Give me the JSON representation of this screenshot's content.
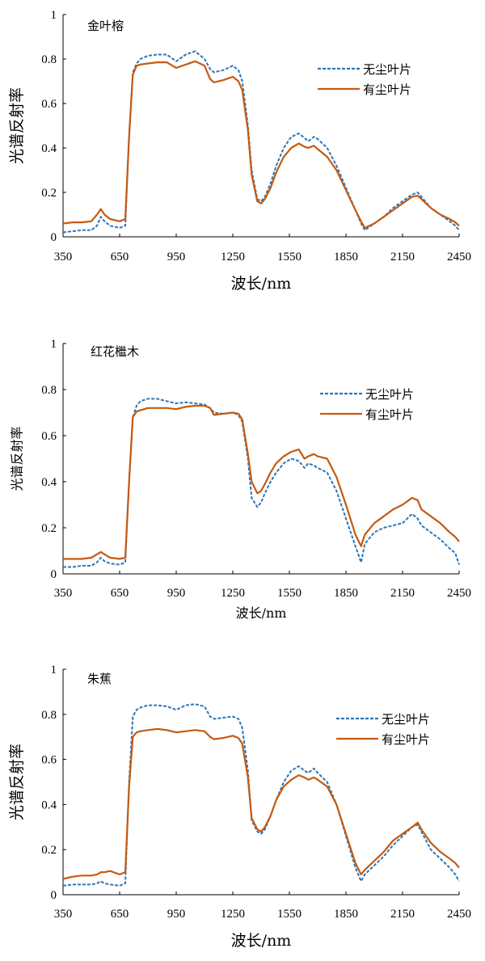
{
  "colors": {
    "dust_free": "#2E75B6",
    "dusty": "#C55A11",
    "axis": "#000000"
  },
  "chart_data": [
    {
      "type": "line",
      "title": "金叶榕",
      "xlabel": "波长/nm",
      "ylabel": "光谱反射率",
      "xlim": [
        350,
        2450
      ],
      "ylim": [
        0,
        1
      ],
      "xticks": [
        "350",
        "650",
        "950",
        "1250",
        "1550",
        "1850",
        "2150",
        "2450"
      ],
      "yticks": [
        "0",
        "0.2",
        "0.4",
        "0.6",
        "0.8",
        "1"
      ],
      "legend": "right",
      "series": [
        {
          "name": "无尘叶片",
          "style": "dashed",
          "x": [
            350,
            400,
            450,
            500,
            530,
            550,
            570,
            600,
            650,
            680,
            700,
            720,
            740,
            760,
            800,
            850,
            900,
            950,
            1000,
            1050,
            1100,
            1130,
            1150,
            1200,
            1250,
            1280,
            1300,
            1330,
            1350,
            1380,
            1400,
            1420,
            1450,
            1480,
            1520,
            1560,
            1600,
            1630,
            1650,
            1680,
            1700,
            1750,
            1800,
            1850,
            1900,
            1930,
            1950,
            2000,
            2050,
            2100,
            2150,
            2200,
            2230,
            2250,
            2300,
            2350,
            2400,
            2430,
            2450
          ],
          "y": [
            0.02,
            0.025,
            0.03,
            0.03,
            0.05,
            0.09,
            0.07,
            0.05,
            0.04,
            0.05,
            0.45,
            0.74,
            0.78,
            0.8,
            0.815,
            0.82,
            0.82,
            0.79,
            0.82,
            0.835,
            0.8,
            0.755,
            0.74,
            0.75,
            0.77,
            0.75,
            0.7,
            0.5,
            0.3,
            0.17,
            0.16,
            0.18,
            0.24,
            0.32,
            0.4,
            0.45,
            0.465,
            0.445,
            0.43,
            0.45,
            0.44,
            0.4,
            0.32,
            0.22,
            0.12,
            0.06,
            0.03,
            0.06,
            0.09,
            0.13,
            0.16,
            0.19,
            0.2,
            0.18,
            0.13,
            0.1,
            0.07,
            0.05,
            0.03
          ]
        },
        {
          "name": "有尘叶片",
          "style": "solid",
          "x": [
            350,
            400,
            450,
            500,
            530,
            550,
            570,
            600,
            650,
            680,
            700,
            720,
            740,
            760,
            800,
            850,
            900,
            950,
            1000,
            1050,
            1100,
            1130,
            1150,
            1200,
            1250,
            1280,
            1300,
            1330,
            1350,
            1380,
            1400,
            1420,
            1450,
            1480,
            1520,
            1560,
            1600,
            1630,
            1650,
            1680,
            1700,
            1750,
            1800,
            1850,
            1900,
            1930,
            1950,
            2000,
            2050,
            2100,
            2150,
            2200,
            2230,
            2250,
            2300,
            2350,
            2400,
            2430,
            2450
          ],
          "y": [
            0.06,
            0.065,
            0.065,
            0.07,
            0.1,
            0.125,
            0.1,
            0.08,
            0.07,
            0.08,
            0.45,
            0.73,
            0.77,
            0.775,
            0.78,
            0.785,
            0.785,
            0.76,
            0.775,
            0.79,
            0.77,
            0.71,
            0.695,
            0.705,
            0.72,
            0.7,
            0.66,
            0.48,
            0.28,
            0.16,
            0.15,
            0.17,
            0.22,
            0.29,
            0.36,
            0.4,
            0.42,
            0.405,
            0.4,
            0.41,
            0.395,
            0.36,
            0.3,
            0.21,
            0.12,
            0.07,
            0.04,
            0.06,
            0.09,
            0.12,
            0.15,
            0.18,
            0.185,
            0.17,
            0.13,
            0.1,
            0.08,
            0.065,
            0.05
          ]
        }
      ]
    },
    {
      "type": "line",
      "title": "红花檵木",
      "xlabel": "波长/nm",
      "ylabel": "光谱反射率",
      "xlim": [
        350,
        2450
      ],
      "ylim": [
        0,
        1
      ],
      "xticks": [
        "350",
        "650",
        "950",
        "1250",
        "1550",
        "1850",
        "2150",
        "2450"
      ],
      "yticks": [
        "0",
        "0.2",
        "0.4",
        "0.6",
        "0.8",
        "1"
      ],
      "legend": "right",
      "series": [
        {
          "name": "无尘叶片",
          "style": "dashed",
          "x": [
            350,
            400,
            450,
            500,
            530,
            550,
            570,
            600,
            650,
            680,
            700,
            720,
            740,
            760,
            800,
            850,
            900,
            950,
            1000,
            1050,
            1100,
            1130,
            1150,
            1200,
            1250,
            1280,
            1300,
            1330,
            1350,
            1380,
            1400,
            1420,
            1450,
            1480,
            1520,
            1560,
            1600,
            1630,
            1650,
            1680,
            1700,
            1750,
            1800,
            1850,
            1900,
            1930,
            1950,
            2000,
            2050,
            2100,
            2150,
            2200,
            2230,
            2250,
            2300,
            2350,
            2400,
            2430,
            2450
          ],
          "y": [
            0.03,
            0.03,
            0.035,
            0.035,
            0.05,
            0.07,
            0.055,
            0.045,
            0.04,
            0.05,
            0.4,
            0.68,
            0.73,
            0.75,
            0.76,
            0.76,
            0.75,
            0.74,
            0.745,
            0.74,
            0.735,
            0.72,
            0.7,
            0.695,
            0.7,
            0.69,
            0.66,
            0.5,
            0.33,
            0.29,
            0.31,
            0.35,
            0.4,
            0.44,
            0.48,
            0.5,
            0.49,
            0.46,
            0.48,
            0.47,
            0.46,
            0.44,
            0.36,
            0.24,
            0.12,
            0.05,
            0.13,
            0.18,
            0.2,
            0.21,
            0.22,
            0.26,
            0.24,
            0.21,
            0.18,
            0.15,
            0.11,
            0.09,
            0.04
          ]
        },
        {
          "name": "有尘叶片",
          "style": "solid",
          "x": [
            350,
            400,
            450,
            500,
            530,
            550,
            570,
            600,
            650,
            680,
            700,
            720,
            740,
            760,
            800,
            850,
            900,
            950,
            1000,
            1050,
            1100,
            1130,
            1150,
            1200,
            1250,
            1280,
            1300,
            1330,
            1350,
            1380,
            1400,
            1420,
            1450,
            1480,
            1520,
            1560,
            1600,
            1630,
            1650,
            1680,
            1700,
            1750,
            1800,
            1850,
            1900,
            1930,
            1950,
            2000,
            2050,
            2100,
            2150,
            2200,
            2230,
            2250,
            2300,
            2350,
            2400,
            2430,
            2450
          ],
          "y": [
            0.065,
            0.065,
            0.065,
            0.07,
            0.085,
            0.095,
            0.085,
            0.07,
            0.065,
            0.07,
            0.4,
            0.68,
            0.705,
            0.71,
            0.72,
            0.72,
            0.72,
            0.715,
            0.725,
            0.73,
            0.73,
            0.72,
            0.69,
            0.695,
            0.7,
            0.695,
            0.67,
            0.52,
            0.4,
            0.35,
            0.36,
            0.39,
            0.44,
            0.48,
            0.51,
            0.53,
            0.54,
            0.5,
            0.51,
            0.52,
            0.51,
            0.5,
            0.42,
            0.3,
            0.17,
            0.12,
            0.17,
            0.22,
            0.25,
            0.28,
            0.3,
            0.33,
            0.32,
            0.28,
            0.25,
            0.22,
            0.18,
            0.16,
            0.14
          ]
        }
      ]
    },
    {
      "type": "line",
      "title": "朱蕉",
      "xlabel": "波长/nm",
      "ylabel": "光谱反射率",
      "xlim": [
        350,
        2450
      ],
      "ylim": [
        0,
        1
      ],
      "xticks": [
        "350",
        "650",
        "950",
        "1250",
        "1550",
        "1850",
        "2150",
        "2450"
      ],
      "yticks": [
        "0",
        "0.2",
        "0.4",
        "0.6",
        "0.8",
        "1"
      ],
      "legend": "right",
      "series": [
        {
          "name": "无尘叶片",
          "style": "dashed",
          "x": [
            350,
            400,
            450,
            500,
            530,
            550,
            570,
            600,
            650,
            680,
            700,
            720,
            740,
            760,
            800,
            850,
            900,
            950,
            1000,
            1050,
            1100,
            1130,
            1150,
            1200,
            1250,
            1280,
            1300,
            1330,
            1350,
            1380,
            1400,
            1420,
            1450,
            1480,
            1520,
            1560,
            1600,
            1630,
            1650,
            1680,
            1700,
            1750,
            1800,
            1850,
            1900,
            1930,
            1950,
            2000,
            2050,
            2100,
            2150,
            2200,
            2230,
            2250,
            2300,
            2350,
            2400,
            2430,
            2450
          ],
          "y": [
            0.04,
            0.045,
            0.045,
            0.045,
            0.05,
            0.06,
            0.05,
            0.045,
            0.04,
            0.05,
            0.5,
            0.79,
            0.82,
            0.83,
            0.84,
            0.84,
            0.835,
            0.82,
            0.84,
            0.845,
            0.835,
            0.79,
            0.78,
            0.785,
            0.79,
            0.78,
            0.74,
            0.55,
            0.33,
            0.28,
            0.27,
            0.29,
            0.35,
            0.42,
            0.5,
            0.55,
            0.57,
            0.55,
            0.54,
            0.56,
            0.54,
            0.5,
            0.4,
            0.26,
            0.12,
            0.06,
            0.09,
            0.13,
            0.17,
            0.22,
            0.26,
            0.3,
            0.31,
            0.28,
            0.2,
            0.16,
            0.12,
            0.09,
            0.06
          ]
        },
        {
          "name": "有尘叶片",
          "style": "solid",
          "x": [
            350,
            400,
            450,
            500,
            530,
            550,
            570,
            600,
            650,
            680,
            700,
            720,
            740,
            760,
            800,
            850,
            900,
            950,
            1000,
            1050,
            1100,
            1130,
            1150,
            1200,
            1250,
            1280,
            1300,
            1330,
            1350,
            1380,
            1400,
            1420,
            1450,
            1480,
            1520,
            1560,
            1600,
            1630,
            1650,
            1680,
            1700,
            1750,
            1800,
            1850,
            1900,
            1930,
            1950,
            2000,
            2050,
            2100,
            2150,
            2200,
            2230,
            2250,
            2300,
            2350,
            2400,
            2430,
            2450
          ],
          "y": [
            0.07,
            0.08,
            0.085,
            0.085,
            0.09,
            0.1,
            0.1,
            0.105,
            0.09,
            0.1,
            0.48,
            0.7,
            0.72,
            0.725,
            0.73,
            0.735,
            0.73,
            0.72,
            0.725,
            0.73,
            0.725,
            0.7,
            0.69,
            0.695,
            0.705,
            0.695,
            0.67,
            0.52,
            0.34,
            0.29,
            0.28,
            0.3,
            0.35,
            0.42,
            0.48,
            0.51,
            0.53,
            0.52,
            0.51,
            0.52,
            0.51,
            0.48,
            0.4,
            0.27,
            0.14,
            0.09,
            0.11,
            0.15,
            0.19,
            0.24,
            0.27,
            0.3,
            0.32,
            0.29,
            0.23,
            0.19,
            0.16,
            0.14,
            0.12
          ]
        }
      ]
    }
  ]
}
